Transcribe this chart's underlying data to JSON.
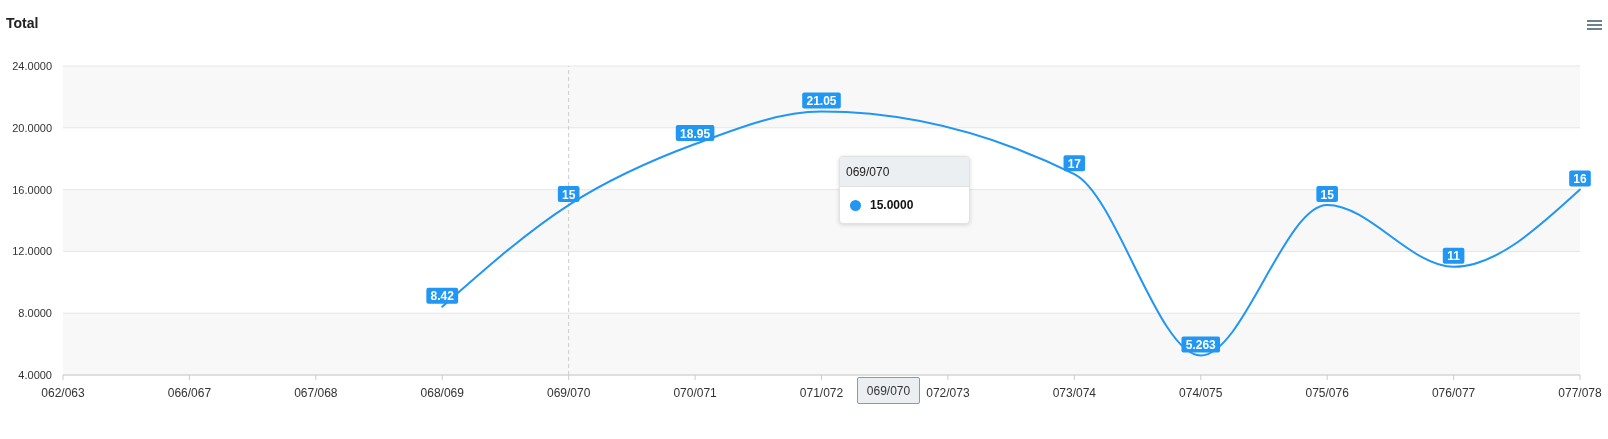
{
  "chart_data": {
    "type": "line",
    "title": "Total",
    "categories": [
      "062/063",
      "066/067",
      "067/068",
      "068/069",
      "069/070",
      "070/071",
      "071/072",
      "072/073",
      "073/074",
      "074/075",
      "075/076",
      "076/077",
      "077/078"
    ],
    "series": [
      {
        "color": "#2196f3",
        "values": [
          null,
          null,
          null,
          8.42,
          15,
          18.95,
          21.05,
          null,
          17,
          5.263,
          15,
          11,
          16
        ]
      }
    ],
    "ylim": [
      4,
      24
    ],
    "yticks": [
      {
        "value": 4,
        "label": "4.0000"
      },
      {
        "value": 8,
        "label": "8.0000"
      },
      {
        "value": 12,
        "label": "12.0000"
      },
      {
        "value": 16,
        "label": "16.0000"
      },
      {
        "value": 20,
        "label": "20.0000"
      },
      {
        "value": 24,
        "label": "24.0000"
      }
    ],
    "grid": "y",
    "marker": "none",
    "data_labels": true,
    "ref_lines": [
      {
        "axis": "x",
        "value": "069/070",
        "color": "#cccccc",
        "line_style": "dashed"
      }
    ],
    "annotations": [
      "069/070",
      "15.0000",
      "069/070"
    ]
  }
}
